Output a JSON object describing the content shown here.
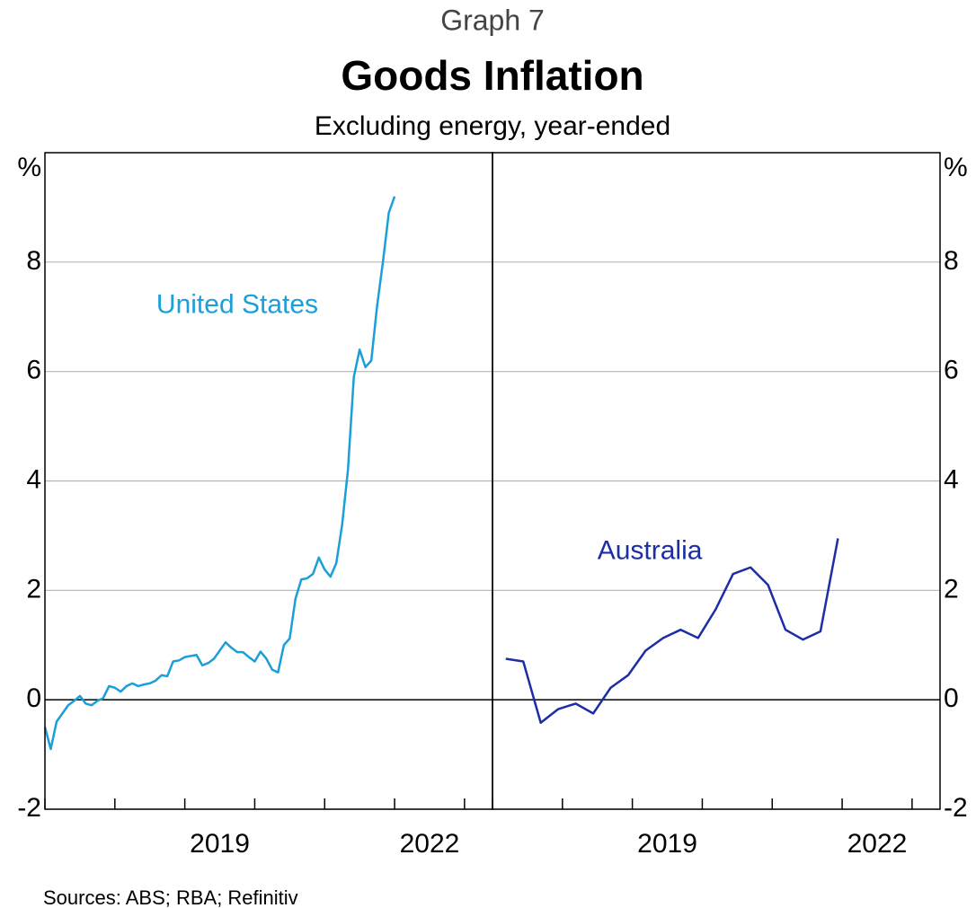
{
  "header": {
    "graph_number": "Graph 7",
    "title": "Goods Inflation",
    "subtitle": "Excluding energy, year-ended"
  },
  "source": "Sources: ABS; RBA; Refinitiv",
  "chart_data": [
    {
      "type": "line",
      "y_unit": "%",
      "ylim": [
        -2,
        10
      ],
      "yticks": [
        -2,
        0,
        2,
        4,
        6,
        8
      ],
      "xlim": [
        2017,
        2023.4
      ],
      "xticks": [
        2017,
        2018,
        2019,
        2020,
        2021,
        2022,
        2023
      ],
      "xticklabels": [
        {
          "value": 2019.5,
          "label": "2019"
        },
        {
          "value": 2022.5,
          "label": "2022"
        }
      ],
      "grid": true,
      "label_side": "left",
      "series": [
        {
          "name": "United States",
          "color": "#1a9fd9",
          "x": [
            2017,
            2017.083,
            2017.167,
            2017.25,
            2017.333,
            2017.417,
            2017.5,
            2017.583,
            2017.667,
            2017.75,
            2017.833,
            2017.917,
            2018,
            2018.083,
            2018.167,
            2018.25,
            2018.333,
            2018.417,
            2018.5,
            2018.583,
            2018.667,
            2018.75,
            2018.833,
            2018.917,
            2019,
            2019.083,
            2019.167,
            2019.25,
            2019.333,
            2019.417,
            2019.5,
            2019.583,
            2019.667,
            2019.75,
            2019.833,
            2019.917,
            2020,
            2020.083,
            2020.167,
            2020.25,
            2020.333,
            2020.417,
            2020.5,
            2020.583,
            2020.667,
            2020.75,
            2020.833,
            2020.917,
            2021,
            2021.083,
            2021.167,
            2021.25,
            2021.333,
            2021.417,
            2021.5,
            2021.583,
            2021.667,
            2021.75,
            2021.833,
            2021.917,
            2022
          ],
          "values": [
            -0.5,
            -0.9,
            -0.4,
            -0.25,
            -0.1,
            -0.02,
            0.07,
            -0.07,
            -0.1,
            -0.02,
            0.03,
            0.25,
            0.22,
            0.15,
            0.25,
            0.3,
            0.25,
            0.28,
            0.3,
            0.35,
            0.45,
            0.43,
            0.7,
            0.72,
            0.78,
            0.8,
            0.82,
            0.63,
            0.67,
            0.75,
            0.9,
            1.05,
            0.95,
            0.87,
            0.87,
            0.78,
            0.7,
            0.88,
            0.75,
            0.55,
            0.5,
            1.0,
            1.12,
            1.85,
            2.2,
            2.22,
            2.3,
            2.6,
            2.38,
            2.25,
            2.5,
            3.2,
            4.2,
            5.9,
            6.4,
            6.08,
            6.2,
            7.2,
            8.0,
            8.9,
            9.2
          ],
          "label_at": [
            2019.75,
            7.2
          ]
        }
      ]
    },
    {
      "type": "line",
      "y_unit": "%",
      "ylim": [
        -2,
        10
      ],
      "yticks": [
        -2,
        0,
        2,
        4,
        6,
        8
      ],
      "xlim": [
        2017,
        2023.4
      ],
      "xticks": [
        2017,
        2018,
        2019,
        2020,
        2021,
        2022,
        2023
      ],
      "xticklabels": [
        {
          "value": 2019.5,
          "label": "2019"
        },
        {
          "value": 2022.5,
          "label": "2022"
        }
      ],
      "grid": true,
      "label_side": "right",
      "series": [
        {
          "name": "Australia",
          "color": "#1c2ea6",
          "x": [
            2017.19,
            2017.44,
            2017.69,
            2017.94,
            2018.19,
            2018.44,
            2018.69,
            2018.94,
            2019.19,
            2019.44,
            2019.69,
            2019.94,
            2020.19,
            2020.44,
            2020.69,
            2020.94,
            2021.19,
            2021.44,
            2021.69,
            2021.94
          ],
          "values": [
            0.75,
            0.7,
            -0.42,
            -0.17,
            -0.07,
            -0.25,
            0.22,
            0.45,
            0.9,
            1.13,
            1.28,
            1.13,
            1.65,
            2.3,
            2.42,
            2.1,
            1.28,
            1.1,
            1.25,
            2.95
          ],
          "label_at": [
            2019.25,
            2.7
          ]
        }
      ]
    }
  ]
}
